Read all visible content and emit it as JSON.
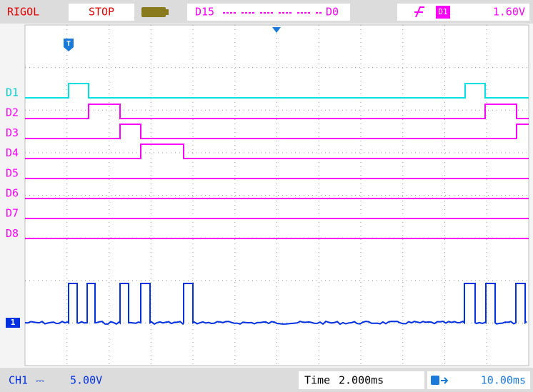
{
  "header": {
    "brand": "RIGOL",
    "status": "STOP",
    "channel_range_high": "D15",
    "channel_range_low": "D0",
    "trigger_source": "D1",
    "trigger_level": "1.60V"
  },
  "markers": {
    "trigger_position": "T",
    "analog_channel": "1"
  },
  "digital_channels": [
    "D1",
    "D2",
    "D3",
    "D4",
    "D5",
    "D6",
    "D7",
    "D8"
  ],
  "footer": {
    "channel": "CH1",
    "coupling": "⎓",
    "scale": "5.00V",
    "time_label": "Time",
    "time_scale": "2.000ms",
    "trigger_offset": "10.00ms"
  }
}
